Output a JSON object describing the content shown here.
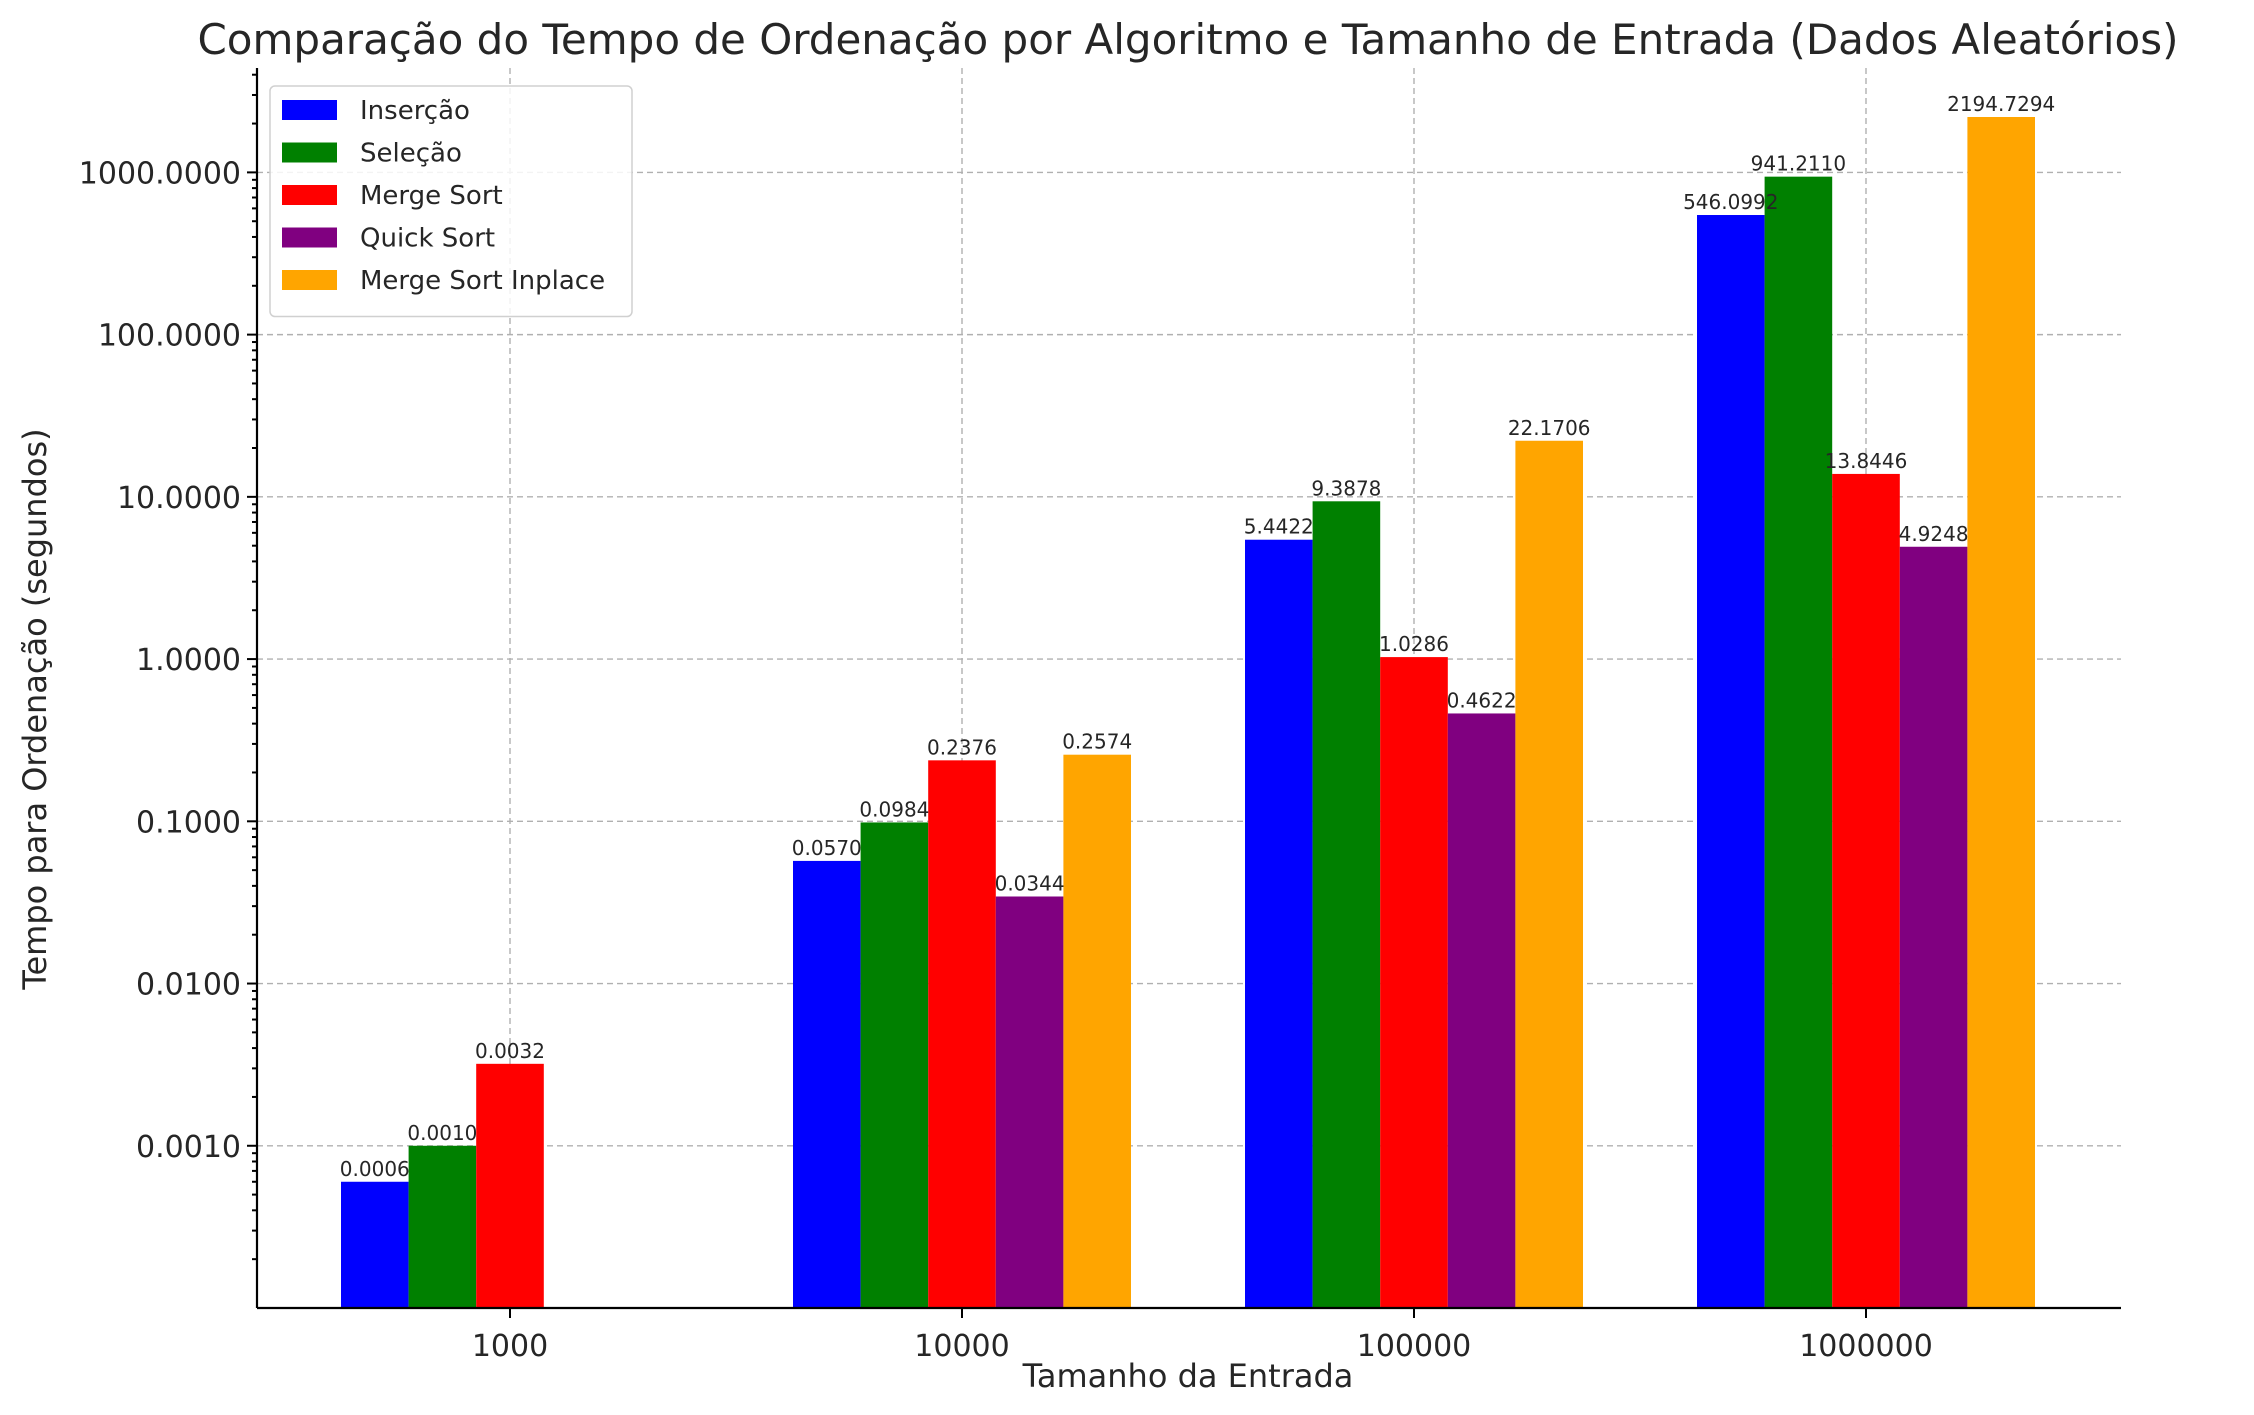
{
  "chart_data": {
    "type": "bar",
    "title": "Comparação do Tempo de Ordenação por Algoritmo e Tamanho de Entrada (Dados Aleatórios)",
    "xlabel": "Tamanho da Entrada",
    "ylabel": "Tempo para Ordenação (segundos)",
    "categories": [
      "1000",
      "10000",
      "100000",
      "1000000"
    ],
    "y_scale": "log",
    "ylim": [
      0.0001,
      4400
    ],
    "y_ticks": [
      0.001,
      0.01,
      0.1,
      1,
      10,
      100,
      1000
    ],
    "y_tick_labels": [
      "0.0010",
      "0.0100",
      "0.1000",
      "1.0000",
      "10.0000",
      "100.0000",
      "1000.0000"
    ],
    "grid": true,
    "legend_position": "top-left",
    "series": [
      {
        "name": "Inserção",
        "color": "#0000ff",
        "values": [
          0.0006,
          0.057,
          5.4422,
          546.0992
        ],
        "labels": [
          "0.0006",
          "0.0570",
          "5.4422",
          "546.0992"
        ]
      },
      {
        "name": "Seleção",
        "color": "#008000",
        "values": [
          0.001,
          0.0984,
          9.3878,
          941.211
        ],
        "labels": [
          "0.0010",
          "0.0984",
          "9.3878",
          "941.2110"
        ]
      },
      {
        "name": "Merge Sort",
        "color": "#ff0000",
        "values": [
          0.0032,
          0.2376,
          1.0286,
          13.8446
        ],
        "labels": [
          "0.0032",
          "0.2376",
          "1.0286",
          "13.8446"
        ]
      },
      {
        "name": "Quick Sort",
        "color": "#800080",
        "values": [
          null,
          0.0344,
          0.4622,
          4.9248
        ],
        "labels": [
          null,
          "0.0344",
          "0.4622",
          "4.9248"
        ]
      },
      {
        "name": "Merge Sort Inplace",
        "color": "#ffa500",
        "values": [
          null,
          0.2574,
          22.1706,
          2194.7294
        ],
        "labels": [
          null,
          "0.2574",
          "22.1706",
          "2194.7294"
        ]
      }
    ]
  }
}
